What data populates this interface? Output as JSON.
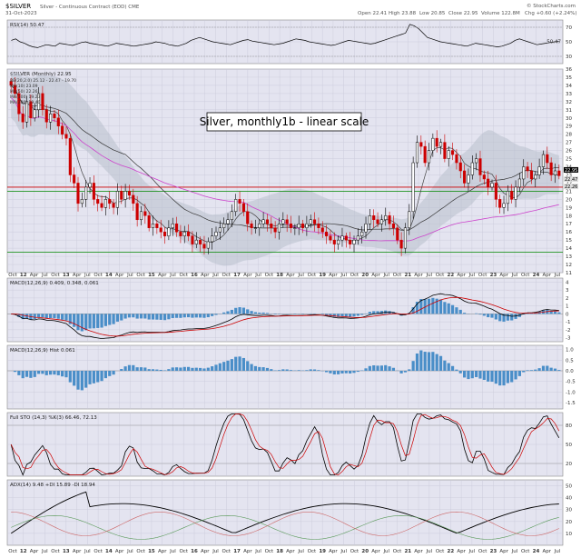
{
  "header": {
    "symbol": "$SILVER",
    "desc": "Silver - Continuous Contract (EOD)  CME",
    "date": "31-Oct-2023",
    "copyright": "© StockCharts.com",
    "open": "Open 22.41",
    "high": "High 23.88",
    "low": "Low 20.85",
    "close": "Close 22.95",
    "volume": "Volume 122.8M",
    "chg": "Chg +0.60 (+2.24%)"
  },
  "colors": {
    "panel_bg": "#e4e4f0",
    "grid": "#c8c8d8",
    "up_candle": "#000000",
    "down_candle": "#cc0000",
    "bb_fill": "#b8c0cc",
    "ma20": "#444444",
    "ma50": "#333333",
    "ma200": "#cc44cc",
    "hist": "#4a8ec8",
    "support_red": "#cc0000",
    "support_green": "#008800"
  },
  "chart_data": [
    {
      "type": "line",
      "name": "rsi",
      "title": "RSI(14) 50.47",
      "ylim": [
        20,
        80
      ],
      "yticks": [
        "70",
        "50",
        "30"
      ],
      "last_value": "50.47",
      "values": [
        52,
        54,
        50,
        48,
        45,
        43,
        42,
        44,
        46,
        45,
        44,
        48,
        47,
        46,
        45,
        47,
        49,
        50,
        48,
        47,
        46,
        45,
        44,
        46,
        48,
        47,
        46,
        45,
        44,
        45,
        46,
        47,
        48,
        50,
        49,
        48,
        46,
        45,
        44,
        46,
        48,
        52,
        54,
        56,
        54,
        52,
        50,
        49,
        48,
        47,
        46,
        48,
        50,
        52,
        53,
        51,
        50,
        49,
        48,
        47,
        46,
        47,
        48,
        50,
        52,
        54,
        53,
        52,
        50,
        49,
        48,
        47,
        46,
        45,
        46,
        48,
        50,
        52,
        51,
        50,
        49,
        48,
        47,
        48,
        50,
        52,
        54,
        56,
        58,
        60,
        62,
        74,
        72,
        68,
        62,
        56,
        54,
        52,
        50,
        49,
        48,
        47,
        46,
        45,
        44,
        46,
        48,
        47,
        46,
        45,
        44,
        43,
        44,
        46,
        48,
        52,
        54,
        52,
        50,
        48,
        46,
        47,
        48,
        49,
        50,
        50.5
      ]
    },
    {
      "type": "candlestick",
      "name": "price",
      "title": "$SILVER (Monthly) 22.95",
      "annotation": "Silver, monthly1b - linear scale",
      "legend": [
        "BB(20,2.0) 25.12 - 22.47 - 19.70",
        "MA(10) 23.09",
        "MA(50) 22.26",
        "MA(100) 19.23",
        "MA(200) 19.40"
      ],
      "ylim": [
        11,
        36
      ],
      "yticks": [
        "36",
        "35",
        "34",
        "33",
        "32",
        "31",
        "30",
        "29",
        "28",
        "27",
        "26",
        "25",
        "24",
        "23",
        "22",
        "21",
        "20",
        "19",
        "18",
        "17",
        "16",
        "15",
        "14",
        "13",
        "12",
        "11"
      ],
      "price_tags": [
        {
          "label": "22.95",
          "value": 22.95
        },
        {
          "label": "22.47",
          "value": 22.47
        },
        {
          "label": "22.26",
          "value": 22.26
        }
      ],
      "support_red": 21.5,
      "support_green": 21.0,
      "support_green_low": 13.5,
      "closes": [
        34.0,
        33.0,
        30.5,
        29.5,
        32.0,
        30.0,
        31.0,
        33.0,
        31.0,
        29.5,
        30.5,
        30.0,
        29.0,
        28.0,
        27.5,
        23.0,
        22.0,
        19.5,
        20.0,
        21.5,
        22.0,
        20.0,
        19.5,
        19.0,
        20.0,
        19.5,
        19.0,
        21.0,
        20.0,
        21.0,
        20.5,
        19.5,
        17.5,
        18.5,
        18.0,
        16.5,
        17.0,
        16.5,
        16.0,
        15.5,
        16.5,
        17.0,
        16.0,
        15.5,
        16.0,
        15.5,
        14.5,
        15.0,
        14.5,
        14.0,
        14.8,
        15.5,
        16.0,
        16.5,
        17.0,
        17.5,
        18.5,
        20.0,
        19.5,
        18.5,
        17.0,
        16.5,
        16.5,
        17.0,
        17.5,
        17.0,
        16.5,
        16.0,
        17.0,
        17.5,
        17.0,
        16.5,
        16.5,
        17.0,
        16.5,
        17.0,
        17.5,
        17.0,
        16.5,
        16.0,
        15.5,
        15.0,
        14.5,
        15.0,
        15.5,
        15.0,
        14.5,
        15.0,
        15.5,
        16.0,
        17.0,
        18.0,
        17.5,
        17.0,
        17.5,
        18.0,
        17.0,
        16.5,
        15.0,
        14.0,
        16.5,
        18.5,
        24.5,
        27.0,
        26.5,
        24.5,
        26.0,
        27.5,
        26.5,
        27.0,
        25.0,
        26.0,
        25.5,
        24.5,
        23.5,
        22.0,
        23.0,
        24.5,
        25.0,
        23.0,
        22.5,
        21.5,
        22.0,
        20.0,
        19.0,
        19.5,
        21.0,
        20.0,
        21.5,
        22.5,
        24.0,
        23.5,
        22.5,
        23.0,
        24.0,
        25.5,
        24.5,
        23.0,
        23.5,
        22.9
      ]
    },
    {
      "type": "line",
      "name": "macd",
      "title": "MACD(12,26,9) 0.409, 0.348, 0.061",
      "ylim": [
        -3.5,
        4.5
      ],
      "yticks": [
        "4",
        "3",
        "2",
        "1",
        "0",
        "-1",
        "-2",
        "-3"
      ]
    },
    {
      "type": "bar",
      "name": "macd_hist",
      "title": "MACD(12,26,9) Hist 0.061",
      "ylim": [
        -1.8,
        1.2
      ],
      "yticks": [
        "1.0",
        "0.5",
        "0.0",
        "-0.5",
        "-1.0",
        "-1.5"
      ]
    },
    {
      "type": "line",
      "name": "stoch",
      "title": "Full STO (14,3) %K(3) 66.46, 72.13",
      "ylim": [
        0,
        100
      ],
      "yticks": [
        "80",
        "50",
        "20"
      ]
    },
    {
      "type": "line",
      "name": "adx",
      "title": "ADX(14) 9.48 +DI 15.89 -DI 18.94",
      "ylim": [
        0,
        55
      ],
      "yticks": [
        "50",
        "40",
        "30",
        "20",
        "10"
      ]
    }
  ],
  "xaxis": {
    "labels": [
      "Oct",
      "12",
      "Apr",
      "Jul",
      "Oct",
      "13",
      "Apr",
      "Jul",
      "Oct",
      "14",
      "Apr",
      "Jul",
      "Oct",
      "15",
      "Apr",
      "Jul",
      "Oct",
      "16",
      "Apr",
      "Jul",
      "Oct",
      "17",
      "Apr",
      "Jul",
      "Oct",
      "18",
      "Apr",
      "Jul",
      "Oct",
      "19",
      "Apr",
      "Jul",
      "Oct",
      "20",
      "Apr",
      "Jul",
      "Oct",
      "21",
      "Apr",
      "Jul",
      "Oct",
      "22",
      "Apr",
      "Jul",
      "Oct",
      "23",
      "Apr",
      "Jul",
      "Oct",
      "24",
      "Apr",
      "Jul"
    ]
  }
}
